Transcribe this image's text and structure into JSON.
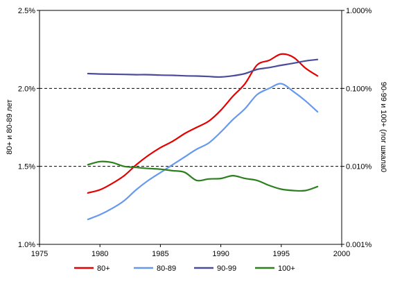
{
  "chart_data": {
    "type": "line",
    "xlim": [
      1975,
      2000
    ],
    "x_ticks": [
      "1975",
      "1980",
      "1985",
      "1990",
      "1995",
      "2000"
    ],
    "left_axis": {
      "label": "80+ и 80-89 лет",
      "lim": [
        1.0,
        2.5
      ],
      "ticks": [
        "1.0%",
        "1.5%",
        "2.0%",
        "2.5%"
      ]
    },
    "right_axis": {
      "label": "90-99 и 100+ (лог шкала0",
      "scale": "log",
      "lim": [
        0.001,
        1.0
      ],
      "ticks": [
        "0.001%",
        "0.010%",
        "0.100%",
        "1.000%"
      ]
    },
    "gridlines": "dashed at 1.5% and 2.0%",
    "legend_position": "bottom",
    "series": [
      {
        "name": "80+",
        "axis": "left",
        "color": "#e60000",
        "x": [
          1979,
          1980,
          1981,
          1982,
          1983,
          1984,
          1985,
          1986,
          1987,
          1988,
          1989,
          1990,
          1991,
          1992,
          1993,
          1994,
          1995,
          1996,
          1997,
          1998
        ],
        "y": [
          1.33,
          1.35,
          1.39,
          1.44,
          1.51,
          1.57,
          1.62,
          1.66,
          1.71,
          1.75,
          1.79,
          1.86,
          1.95,
          2.03,
          2.15,
          2.18,
          2.22,
          2.2,
          2.13,
          2.08
        ]
      },
      {
        "name": "80-89",
        "axis": "left",
        "color": "#6699ee",
        "x": [
          1979,
          1980,
          1981,
          1982,
          1983,
          1984,
          1985,
          1986,
          1987,
          1988,
          1989,
          1990,
          1991,
          1992,
          1993,
          1994,
          1995,
          1996,
          1997,
          1998
        ],
        "y": [
          1.16,
          1.19,
          1.23,
          1.28,
          1.35,
          1.41,
          1.46,
          1.51,
          1.56,
          1.61,
          1.65,
          1.72,
          1.8,
          1.87,
          1.96,
          2.0,
          2.03,
          1.98,
          1.92,
          1.85
        ]
      },
      {
        "name": "90-99",
        "axis": "right",
        "color": "#4b4b9b",
        "x": [
          1979,
          1980,
          1981,
          1982,
          1983,
          1984,
          1985,
          1986,
          1987,
          1988,
          1989,
          1990,
          1991,
          1992,
          1993,
          1994,
          1995,
          1996,
          1997,
          1998
        ],
        "y": [
          0.155,
          0.153,
          0.152,
          0.151,
          0.15,
          0.15,
          0.148,
          0.147,
          0.145,
          0.144,
          0.142,
          0.14,
          0.145,
          0.155,
          0.175,
          0.185,
          0.198,
          0.21,
          0.225,
          0.235
        ]
      },
      {
        "name": "100+",
        "axis": "right",
        "color": "#2b7f1c",
        "x": [
          1979,
          1980,
          1981,
          1982,
          1983,
          1984,
          1985,
          1986,
          1987,
          1988,
          1989,
          1990,
          1991,
          1992,
          1993,
          1994,
          1995,
          1996,
          1997,
          1998
        ],
        "y": [
          0.0105,
          0.0115,
          0.0112,
          0.01,
          0.0097,
          0.0094,
          0.0092,
          0.0088,
          0.0084,
          0.0066,
          0.0069,
          0.007,
          0.0076,
          0.007,
          0.0066,
          0.0057,
          0.0051,
          0.0049,
          0.0049,
          0.0055
        ]
      }
    ]
  }
}
